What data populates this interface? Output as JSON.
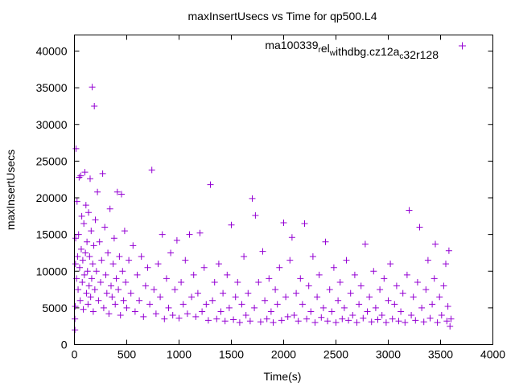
{
  "chart_data": {
    "type": "scatter",
    "title": "maxInsertUsecs vs Time for qp500.L4",
    "xlabel": "Time(s)",
    "ylabel": "maxInsertUsecs",
    "xlim": [
      0,
      4000
    ],
    "ylim": [
      0,
      42200
    ],
    "xticks": [
      0,
      500,
      1000,
      1500,
      2000,
      2500,
      3000,
      3500,
      4000
    ],
    "yticks": [
      0,
      5000,
      10000,
      15000,
      20000,
      25000,
      30000,
      35000,
      40000
    ],
    "grid": false,
    "legend_position": "top-right",
    "series": [
      {
        "name": "ma100339_rel_withdbg.cz12a_c32r128",
        "legend_parts": [
          [
            "ma100339",
            ""
          ],
          [
            "r",
            "sub"
          ],
          [
            "el",
            ""
          ],
          [
            "w",
            "sub"
          ],
          [
            "ithdbg.cz12a",
            ""
          ],
          [
            "c",
            "sub"
          ],
          [
            "32r128",
            ""
          ]
        ],
        "color": "#9400d3",
        "marker": "plus",
        "points": [
          [
            5,
            2000
          ],
          [
            5,
            3500
          ],
          [
            8,
            5200
          ],
          [
            10,
            11000
          ],
          [
            12,
            14500
          ],
          [
            15,
            26700
          ],
          [
            20,
            9000
          ],
          [
            25,
            19500
          ],
          [
            30,
            12000
          ],
          [
            35,
            7500
          ],
          [
            40,
            15000
          ],
          [
            45,
            22800
          ],
          [
            50,
            10500
          ],
          [
            55,
            6000
          ],
          [
            60,
            23000
          ],
          [
            65,
            13000
          ],
          [
            70,
            17500
          ],
          [
            75,
            8500
          ],
          [
            80,
            11500
          ],
          [
            85,
            4800
          ],
          [
            90,
            16500
          ],
          [
            95,
            9500
          ],
          [
            100,
            23500
          ],
          [
            105,
            12500
          ],
          [
            110,
            19000
          ],
          [
            115,
            7000
          ],
          [
            120,
            14000
          ],
          [
            125,
            10000
          ],
          [
            130,
            5500
          ],
          [
            135,
            18000
          ],
          [
            140,
            8000
          ],
          [
            145,
            12000
          ],
          [
            150,
            22600
          ],
          [
            155,
            6500
          ],
          [
            160,
            15500
          ],
          [
            165,
            9000
          ],
          [
            170,
            35100
          ],
          [
            175,
            11000
          ],
          [
            180,
            4500
          ],
          [
            185,
            13500
          ],
          [
            190,
            32500
          ],
          [
            195,
            7500
          ],
          [
            200,
            17000
          ],
          [
            210,
            10000
          ],
          [
            220,
            20800
          ],
          [
            230,
            6000
          ],
          [
            240,
            14000
          ],
          [
            250,
            8500
          ],
          [
            260,
            11500
          ],
          [
            270,
            23300
          ],
          [
            280,
            5000
          ],
          [
            290,
            16000
          ],
          [
            300,
            9500
          ],
          [
            310,
            7000
          ],
          [
            320,
            12500
          ],
          [
            330,
            4200
          ],
          [
            340,
            18500
          ],
          [
            350,
            8000
          ],
          [
            360,
            6500
          ],
          [
            370,
            11000
          ],
          [
            380,
            14500
          ],
          [
            390,
            5500
          ],
          [
            400,
            9000
          ],
          [
            410,
            20800
          ],
          [
            420,
            7500
          ],
          [
            430,
            12000
          ],
          [
            440,
            4000
          ],
          [
            450,
            20500
          ],
          [
            460,
            10000
          ],
          [
            470,
            6000
          ],
          [
            480,
            15500
          ],
          [
            490,
            8500
          ],
          [
            500,
            5000
          ],
          [
            520,
            11500
          ],
          [
            540,
            7000
          ],
          [
            560,
            13500
          ],
          [
            580,
            4500
          ],
          [
            600,
            9500
          ],
          [
            620,
            6000
          ],
          [
            640,
            12000
          ],
          [
            660,
            3800
          ],
          [
            680,
            8000
          ],
          [
            700,
            10500
          ],
          [
            720,
            5500
          ],
          [
            740,
            23800
          ],
          [
            760,
            7500
          ],
          [
            780,
            4200
          ],
          [
            800,
            11000
          ],
          [
            820,
            6500
          ],
          [
            840,
            15000
          ],
          [
            860,
            3500
          ],
          [
            880,
            9000
          ],
          [
            900,
            5000
          ],
          [
            920,
            12500
          ],
          [
            940,
            4000
          ],
          [
            960,
            7500
          ],
          [
            980,
            14200
          ],
          [
            1000,
            3600
          ],
          [
            1020,
            8500
          ],
          [
            1040,
            5500
          ],
          [
            1060,
            11500
          ],
          [
            1080,
            4200
          ],
          [
            1100,
            15000
          ],
          [
            1120,
            6500
          ],
          [
            1140,
            9500
          ],
          [
            1160,
            3800
          ],
          [
            1180,
            7000
          ],
          [
            1200,
            15200
          ],
          [
            1220,
            4500
          ],
          [
            1240,
            10500
          ],
          [
            1260,
            5500
          ],
          [
            1280,
            3300
          ],
          [
            1300,
            21800
          ],
          [
            1320,
            6000
          ],
          [
            1340,
            8500
          ],
          [
            1360,
            3500
          ],
          [
            1380,
            11000
          ],
          [
            1400,
            4500
          ],
          [
            1420,
            7000
          ],
          [
            1440,
            3200
          ],
          [
            1460,
            9500
          ],
          [
            1480,
            5000
          ],
          [
            1500,
            16300
          ],
          [
            1520,
            3400
          ],
          [
            1540,
            6500
          ],
          [
            1560,
            8500
          ],
          [
            1580,
            3000
          ],
          [
            1600,
            5500
          ],
          [
            1620,
            12000
          ],
          [
            1640,
            4000
          ],
          [
            1660,
            7000
          ],
          [
            1680,
            3200
          ],
          [
            1700,
            19900
          ],
          [
            1720,
            5000
          ],
          [
            1730,
            17600
          ],
          [
            1760,
            8500
          ],
          [
            1780,
            3100
          ],
          [
            1800,
            12700
          ],
          [
            1820,
            6000
          ],
          [
            1840,
            3500
          ],
          [
            1860,
            9000
          ],
          [
            1880,
            4500
          ],
          [
            1900,
            3000
          ],
          [
            1920,
            7500
          ],
          [
            1940,
            5500
          ],
          [
            1960,
            10500
          ],
          [
            1980,
            3300
          ],
          [
            2000,
            16600
          ],
          [
            2020,
            6500
          ],
          [
            2040,
            3800
          ],
          [
            2060,
            11500
          ],
          [
            2080,
            14600
          ],
          [
            2100,
            4000
          ],
          [
            2120,
            7000
          ],
          [
            2140,
            3200
          ],
          [
            2160,
            9000
          ],
          [
            2180,
            5500
          ],
          [
            2200,
            16500
          ],
          [
            2220,
            3500
          ],
          [
            2240,
            8000
          ],
          [
            2260,
            4500
          ],
          [
            2280,
            12000
          ],
          [
            2300,
            3000
          ],
          [
            2320,
            6500
          ],
          [
            2340,
            9500
          ],
          [
            2360,
            3700
          ],
          [
            2380,
            5000
          ],
          [
            2400,
            14000
          ],
          [
            2420,
            3200
          ],
          [
            2440,
            7500
          ],
          [
            2460,
            4500
          ],
          [
            2480,
            10500
          ],
          [
            2500,
            3000
          ],
          [
            2520,
            6000
          ],
          [
            2540,
            8500
          ],
          [
            2560,
            3500
          ],
          [
            2580,
            5000
          ],
          [
            2600,
            11500
          ],
          [
            2620,
            3300
          ],
          [
            2640,
            7000
          ],
          [
            2660,
            4000
          ],
          [
            2680,
            9500
          ],
          [
            2700,
            3000
          ],
          [
            2720,
            5500
          ],
          [
            2740,
            8000
          ],
          [
            2760,
            3600
          ],
          [
            2780,
            13700
          ],
          [
            2800,
            4500
          ],
          [
            2820,
            6500
          ],
          [
            2840,
            3100
          ],
          [
            2860,
            10000
          ],
          [
            2880,
            5000
          ],
          [
            2900,
            3400
          ],
          [
            2920,
            7500
          ],
          [
            2940,
            4000
          ],
          [
            2960,
            9000
          ],
          [
            2980,
            3000
          ],
          [
            3000,
            6000
          ],
          [
            3020,
            11000
          ],
          [
            3040,
            3500
          ],
          [
            3060,
            5500
          ],
          [
            3080,
            8000
          ],
          [
            3100,
            3200
          ],
          [
            3120,
            4500
          ],
          [
            3140,
            7000
          ],
          [
            3160,
            3000
          ],
          [
            3180,
            9500
          ],
          [
            3200,
            18300
          ],
          [
            3220,
            4000
          ],
          [
            3240,
            6500
          ],
          [
            3260,
            3300
          ],
          [
            3280,
            8500
          ],
          [
            3300,
            16000
          ],
          [
            3320,
            5000
          ],
          [
            3340,
            3100
          ],
          [
            3360,
            7500
          ],
          [
            3380,
            11500
          ],
          [
            3400,
            3600
          ],
          [
            3420,
            5500
          ],
          [
            3440,
            9000
          ],
          [
            3450,
            13700
          ],
          [
            3470,
            3000
          ],
          [
            3490,
            6500
          ],
          [
            3510,
            4000
          ],
          [
            3530,
            8000
          ],
          [
            3550,
            11000
          ],
          [
            3560,
            3200
          ],
          [
            3570,
            5200
          ],
          [
            3580,
            12800
          ],
          [
            3590,
            2500
          ],
          [
            3600,
            3500
          ]
        ]
      }
    ]
  }
}
